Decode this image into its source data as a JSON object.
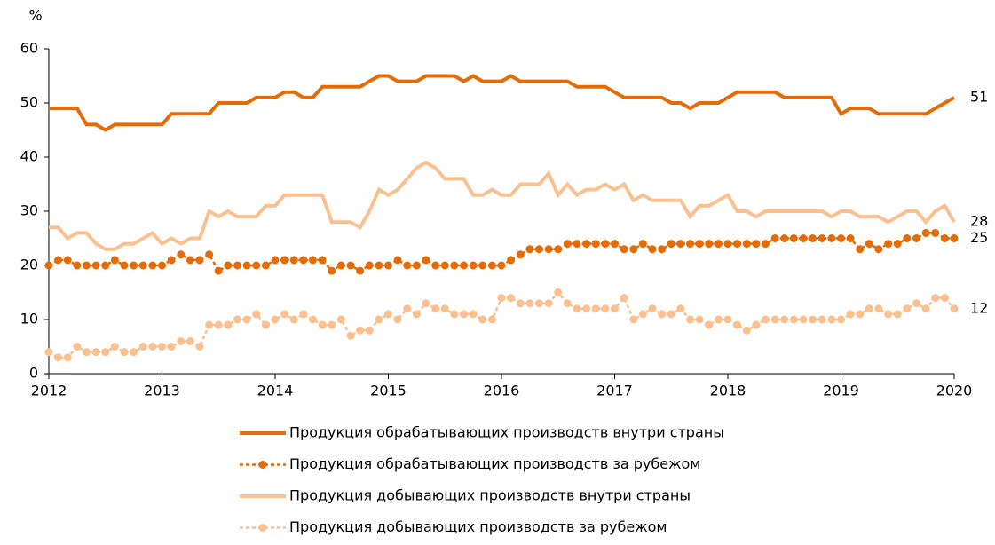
{
  "chart_data": {
    "type": "line",
    "ylabel": "%",
    "x": [
      2012,
      2012.083,
      2012.167,
      2012.25,
      2012.333,
      2012.417,
      2012.5,
      2012.583,
      2012.667,
      2012.75,
      2012.833,
      2012.917,
      2013,
      2013.083,
      2013.167,
      2013.25,
      2013.333,
      2013.417,
      2013.5,
      2013.583,
      2013.667,
      2013.75,
      2013.833,
      2013.917,
      2014,
      2014.083,
      2014.167,
      2014.25,
      2014.333,
      2014.417,
      2014.5,
      2014.583,
      2014.667,
      2014.75,
      2014.833,
      2014.917,
      2015,
      2015.083,
      2015.167,
      2015.25,
      2015.333,
      2015.417,
      2015.5,
      2015.583,
      2015.667,
      2015.75,
      2015.833,
      2015.917,
      2016,
      2016.083,
      2016.167,
      2016.25,
      2016.333,
      2016.417,
      2016.5,
      2016.583,
      2016.667,
      2016.75,
      2016.833,
      2016.917,
      2017,
      2017.083,
      2017.167,
      2017.25,
      2017.333,
      2017.417,
      2017.5,
      2017.583,
      2017.667,
      2017.75,
      2017.833,
      2017.917,
      2018,
      2018.083,
      2018.167,
      2018.25,
      2018.333,
      2018.417,
      2018.5,
      2018.583,
      2018.667,
      2018.75,
      2018.833,
      2018.917,
      2019,
      2019.083,
      2019.167,
      2019.25,
      2019.333,
      2019.417,
      2019.5,
      2019.583,
      2019.667,
      2019.75,
      2019.833,
      2019.917,
      2020
    ],
    "series": [
      {
        "name": "Продукция обрабатывающих производств внутри страны",
        "color": "#e36c09",
        "marker": "none",
        "values": [
          49,
          49,
          49,
          49,
          46,
          46,
          45,
          46,
          46,
          46,
          46,
          46,
          46,
          48,
          48,
          48,
          48,
          48,
          50,
          50,
          50,
          50,
          51,
          51,
          51,
          52,
          52,
          51,
          51,
          53,
          53,
          53,
          53,
          53,
          54,
          55,
          55,
          54,
          54,
          54,
          55,
          55,
          55,
          55,
          54,
          55,
          54,
          54,
          54,
          55,
          54,
          54,
          54,
          54,
          54,
          54,
          53,
          53,
          53,
          53,
          52,
          51,
          51,
          51,
          51,
          51,
          50,
          50,
          49,
          50,
          50,
          50,
          51,
          52,
          52,
          52,
          52,
          52,
          51,
          51,
          51,
          51,
          51,
          51,
          48,
          49,
          49,
          49,
          48,
          48,
          48,
          48,
          48,
          48,
          49,
          50,
          51
        ]
      },
      {
        "name": "Продукция обрабатывающих производств за рубежом",
        "color": "#e36c09",
        "marker": "circle",
        "values": [
          20,
          21,
          21,
          20,
          20,
          20,
          20,
          21,
          20,
          20,
          20,
          20,
          20,
          21,
          22,
          21,
          21,
          22,
          19,
          20,
          20,
          20,
          20,
          20,
          21,
          21,
          21,
          21,
          21,
          21,
          19,
          20,
          20,
          19,
          20,
          20,
          20,
          21,
          20,
          20,
          21,
          20,
          20,
          20,
          20,
          20,
          20,
          20,
          20,
          21,
          22,
          23,
          23,
          23,
          23,
          24,
          24,
          24,
          24,
          24,
          24,
          23,
          23,
          24,
          23,
          23,
          24,
          24,
          24,
          24,
          24,
          24,
          24,
          24,
          24,
          24,
          24,
          25,
          25,
          25,
          25,
          25,
          25,
          25,
          25,
          25,
          23,
          24,
          23,
          24,
          24,
          25,
          25,
          26,
          26,
          25,
          25
        ]
      },
      {
        "name": "Продукция добывающих производств внутри страны",
        "color": "#fac090",
        "marker": "none",
        "values": [
          27,
          27,
          25,
          26,
          26,
          24,
          23,
          23,
          24,
          24,
          25,
          26,
          24,
          25,
          24,
          25,
          25,
          30,
          29,
          30,
          29,
          29,
          29,
          31,
          31,
          33,
          33,
          33,
          33,
          33,
          28,
          28,
          28,
          27,
          30,
          34,
          33,
          34,
          36,
          38,
          39,
          38,
          36,
          36,
          36,
          33,
          33,
          34,
          33,
          33,
          35,
          35,
          35,
          37,
          33,
          35,
          33,
          34,
          34,
          35,
          34,
          35,
          32,
          33,
          32,
          32,
          32,
          32,
          29,
          31,
          31,
          32,
          33,
          30,
          30,
          29,
          30,
          30,
          30,
          30,
          30,
          30,
          30,
          29,
          30,
          30,
          29,
          29,
          29,
          28,
          29,
          30,
          30,
          28,
          30,
          31,
          28
        ]
      },
      {
        "name": "Продукция добывающих производств за рубежом",
        "color": "#fac090",
        "marker": "circle",
        "values": [
          4,
          3,
          3,
          5,
          4,
          4,
          4,
          5,
          4,
          4,
          5,
          5,
          5,
          5,
          6,
          6,
          5,
          9,
          9,
          9,
          10,
          10,
          11,
          9,
          10,
          11,
          10,
          11,
          10,
          9,
          9,
          10,
          7,
          8,
          8,
          10,
          11,
          10,
          12,
          11,
          13,
          12,
          12,
          11,
          11,
          11,
          10,
          10,
          14,
          14,
          13,
          13,
          13,
          13,
          15,
          13,
          12,
          12,
          12,
          12,
          12,
          14,
          10,
          11,
          12,
          11,
          11,
          12,
          10,
          10,
          9,
          10,
          10,
          9,
          8,
          9,
          10,
          10,
          10,
          10,
          10,
          10,
          10,
          10,
          10,
          11,
          11,
          12,
          12,
          11,
          11,
          12,
          13,
          12,
          14,
          14,
          12
        ]
      }
    ],
    "xlim": [
      2012,
      2020
    ],
    "xticks": [
      2012,
      2013,
      2014,
      2015,
      2016,
      2017,
      2018,
      2019,
      2020
    ],
    "ylim": [
      0,
      60
    ],
    "yticks": [
      0,
      10,
      20,
      30,
      40,
      50,
      60
    ],
    "grid": false,
    "legend": "bottom"
  }
}
